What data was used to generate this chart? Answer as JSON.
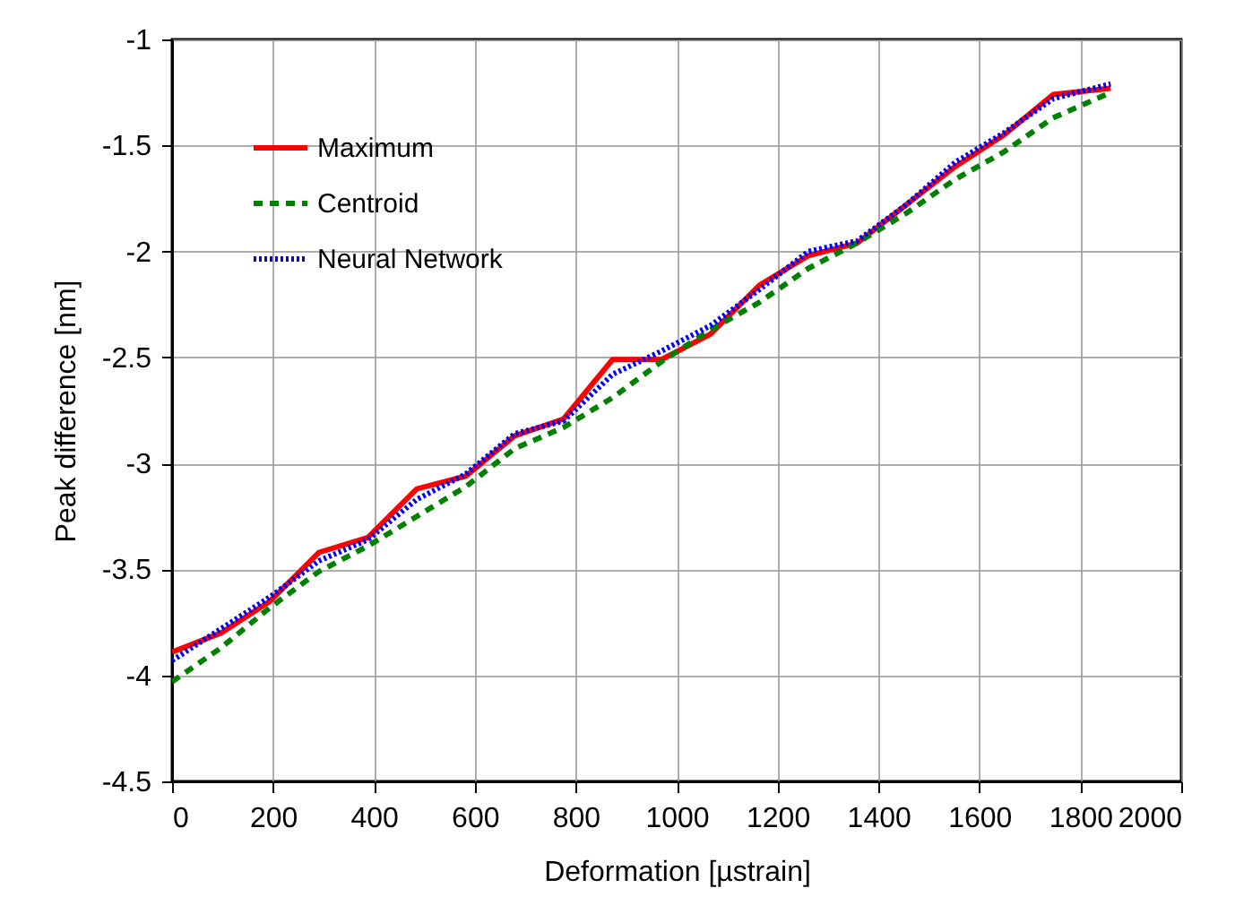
{
  "chart_data": {
    "type": "line",
    "xlabel": "Deformation [µstrain]",
    "ylabel": "Peak difference [nm]",
    "x": [
      0,
      97,
      194,
      291,
      388,
      485,
      582,
      679,
      776,
      873,
      970,
      1067,
      1164,
      1261,
      1358,
      1455,
      1552,
      1649,
      1746,
      1860
    ],
    "series": [
      {
        "name": "Maximum",
        "color": "#ff0000",
        "line_style": "solid",
        "values": [
          -3.89,
          -3.8,
          -3.65,
          -3.42,
          -3.35,
          -3.12,
          -3.06,
          -2.87,
          -2.79,
          -2.51,
          -2.51,
          -2.39,
          -2.16,
          -2.02,
          -1.96,
          -1.78,
          -1.6,
          -1.45,
          -1.26,
          -1.23
        ]
      },
      {
        "name": "Centroid",
        "color": "#008000",
        "line_style": "dashed",
        "values": [
          -4.03,
          -3.87,
          -3.68,
          -3.51,
          -3.39,
          -3.25,
          -3.11,
          -2.93,
          -2.83,
          -2.69,
          -2.52,
          -2.37,
          -2.24,
          -2.08,
          -1.96,
          -1.82,
          -1.66,
          -1.53,
          -1.37,
          -1.25
        ]
      },
      {
        "name": "Neural Network",
        "color": "#0000ff",
        "line_style": "dotted",
        "values": [
          -3.93,
          -3.78,
          -3.63,
          -3.46,
          -3.36,
          -3.17,
          -3.05,
          -2.86,
          -2.8,
          -2.58,
          -2.47,
          -2.35,
          -2.18,
          -2.0,
          -1.95,
          -1.78,
          -1.58,
          -1.44,
          -1.28,
          -1.21
        ]
      }
    ],
    "xlim": [
      0,
      2000
    ],
    "xticks": [
      0,
      200,
      400,
      600,
      800,
      1000,
      1200,
      1400,
      1600,
      1800,
      2000
    ],
    "ylim": [
      -4.5,
      -1
    ],
    "yticks": [
      -4.5,
      -4,
      -3.5,
      -3,
      -2.5,
      -2,
      -1.5,
      -1
    ],
    "grid": true,
    "legend": "top left"
  }
}
